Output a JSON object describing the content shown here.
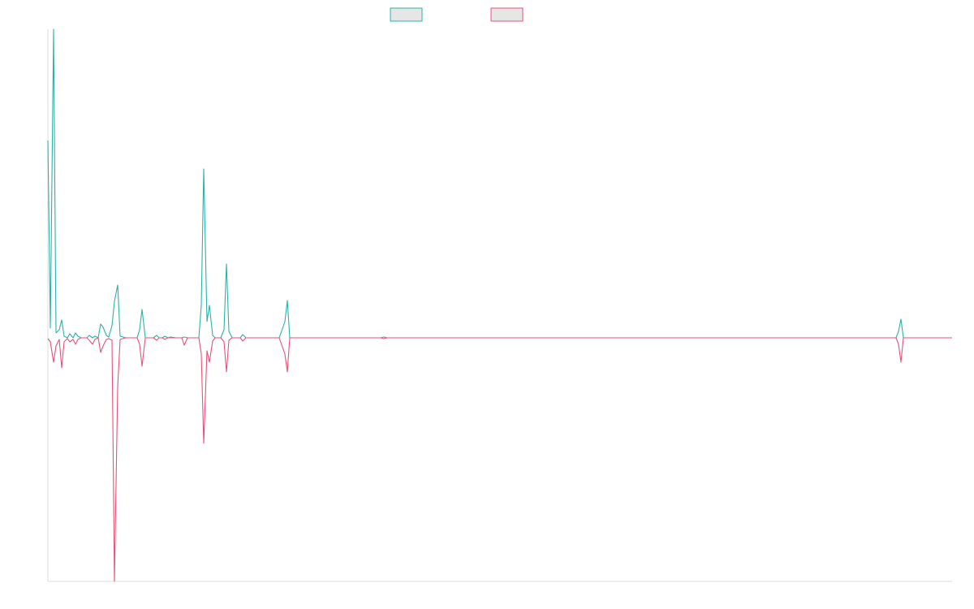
{
  "colors": {
    "series_a": "#2ab3a6",
    "series_b": "#e8517a",
    "axis": "#dcdcdc",
    "legend_fill": "#e6e6e6"
  },
  "legend": [
    {
      "name": "",
      "color": "#2ab3a6"
    },
    {
      "name": "",
      "color": "#e8517a"
    }
  ],
  "chart_data": {
    "type": "line",
    "title": "",
    "xlabel": "",
    "ylabel": "",
    "grid": false,
    "legend_position": "top-center",
    "ylim": [
      -300,
      380
    ],
    "xlim": [
      0,
      1114
    ],
    "series": [
      {
        "color": "#2ab3a6",
        "points": [
          [
            0,
            243
          ],
          [
            3,
            12
          ],
          [
            7,
            380
          ],
          [
            10,
            6
          ],
          [
            14,
            10
          ],
          [
            17,
            22
          ],
          [
            20,
            2
          ],
          [
            24,
            0
          ],
          [
            27,
            5
          ],
          [
            31,
            0
          ],
          [
            34,
            6
          ],
          [
            37,
            2
          ],
          [
            41,
            0
          ],
          [
            48,
            0
          ],
          [
            51,
            3
          ],
          [
            55,
            0
          ],
          [
            58,
            2
          ],
          [
            62,
            0
          ],
          [
            65,
            17
          ],
          [
            68,
            13
          ],
          [
            72,
            3
          ],
          [
            75,
            1
          ],
          [
            79,
            15
          ],
          [
            82,
            45
          ],
          [
            86,
            65
          ],
          [
            89,
            2
          ],
          [
            96,
            0
          ],
          [
            110,
            0
          ],
          [
            113,
            10
          ],
          [
            116,
            35
          ],
          [
            120,
            0
          ],
          [
            130,
            0
          ],
          [
            134,
            3
          ],
          [
            137,
            0
          ],
          [
            141,
            0
          ],
          [
            144,
            2
          ],
          [
            148,
            0
          ],
          [
            151,
            1
          ],
          [
            158,
            0
          ],
          [
            165,
            0
          ],
          [
            168,
            1
          ],
          [
            172,
            0
          ],
          [
            186,
            0
          ],
          [
            189,
            40
          ],
          [
            192,
            208
          ],
          [
            196,
            20
          ],
          [
            199,
            40
          ],
          [
            203,
            3
          ],
          [
            206,
            0
          ],
          [
            213,
            0
          ],
          [
            217,
            10
          ],
          [
            220,
            91
          ],
          [
            223,
            8
          ],
          [
            227,
            0
          ],
          [
            237,
            0
          ],
          [
            240,
            4
          ],
          [
            244,
            0
          ],
          [
            285,
            0
          ],
          [
            292,
            20
          ],
          [
            295,
            46
          ],
          [
            298,
            0
          ],
          [
            330,
            0
          ],
          [
            360,
            0
          ],
          [
            410,
            0
          ],
          [
            414,
            1
          ],
          [
            418,
            0
          ],
          [
            1045,
            0
          ],
          [
            1048,
            8
          ],
          [
            1051,
            23
          ],
          [
            1054,
            0
          ],
          [
            1114,
            0
          ]
        ]
      },
      {
        "color": "#e8517a",
        "points": [
          [
            0,
            -1
          ],
          [
            3,
            -5
          ],
          [
            7,
            -30
          ],
          [
            10,
            -10
          ],
          [
            14,
            -2
          ],
          [
            17,
            -37
          ],
          [
            20,
            -5
          ],
          [
            24,
            -1
          ],
          [
            27,
            -5
          ],
          [
            31,
            -2
          ],
          [
            34,
            -8
          ],
          [
            37,
            -2
          ],
          [
            41,
            0
          ],
          [
            48,
            0
          ],
          [
            51,
            -3
          ],
          [
            55,
            -8
          ],
          [
            58,
            -2
          ],
          [
            62,
            0
          ],
          [
            65,
            -18
          ],
          [
            68,
            -10
          ],
          [
            72,
            -2
          ],
          [
            75,
            -1
          ],
          [
            79,
            -3
          ],
          [
            82,
            -300
          ],
          [
            86,
            -60
          ],
          [
            89,
            -2
          ],
          [
            96,
            0
          ],
          [
            110,
            0
          ],
          [
            113,
            -8
          ],
          [
            116,
            -35
          ],
          [
            120,
            0
          ],
          [
            130,
            0
          ],
          [
            134,
            -3
          ],
          [
            137,
            0
          ],
          [
            141,
            0
          ],
          [
            144,
            -2
          ],
          [
            148,
            0
          ],
          [
            151,
            0
          ],
          [
            158,
            0
          ],
          [
            165,
            0
          ],
          [
            168,
            -9
          ],
          [
            172,
            0
          ],
          [
            186,
            0
          ],
          [
            189,
            -20
          ],
          [
            192,
            -130
          ],
          [
            196,
            -16
          ],
          [
            199,
            -30
          ],
          [
            203,
            -4
          ],
          [
            206,
            0
          ],
          [
            213,
            0
          ],
          [
            217,
            -5
          ],
          [
            220,
            -42
          ],
          [
            223,
            -3
          ],
          [
            227,
            0
          ],
          [
            237,
            0
          ],
          [
            240,
            -4
          ],
          [
            244,
            0
          ],
          [
            285,
            0
          ],
          [
            292,
            -20
          ],
          [
            295,
            -42
          ],
          [
            298,
            0
          ],
          [
            330,
            0
          ],
          [
            360,
            0
          ],
          [
            410,
            0
          ],
          [
            414,
            -1
          ],
          [
            418,
            0
          ],
          [
            1045,
            0
          ],
          [
            1048,
            -8
          ],
          [
            1051,
            -30
          ],
          [
            1054,
            0
          ],
          [
            1114,
            0
          ]
        ]
      }
    ]
  }
}
